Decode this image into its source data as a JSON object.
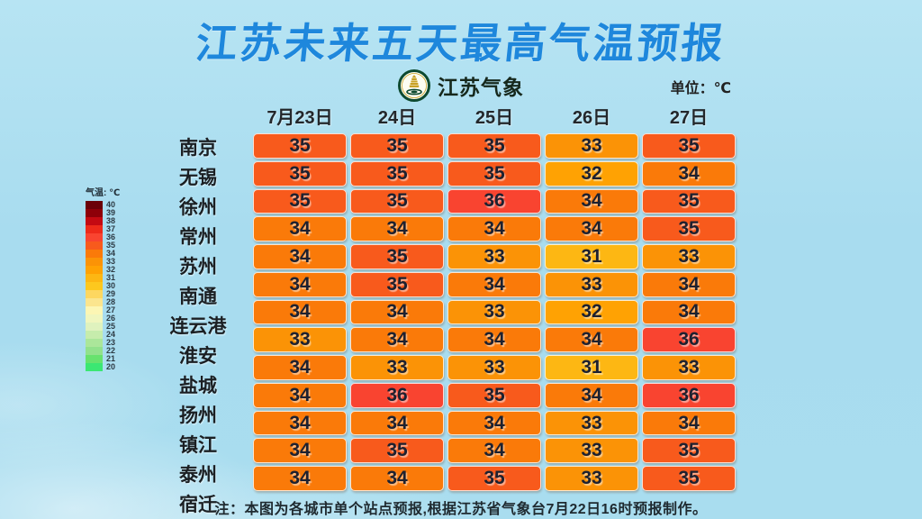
{
  "title": "江苏未来五天最高气温预报",
  "brand": {
    "label": "江苏气象"
  },
  "unit_label": "单位：℃",
  "note": "注：本图为各城市单个站点预报,根据江苏省气象台7月22日16时预报制作。",
  "legend": {
    "title": "气温: ℃",
    "ticks": [
      {
        "value": "40",
        "color": "#6b0008"
      },
      {
        "value": "39",
        "color": "#8e0009"
      },
      {
        "value": "38",
        "color": "#c40a12"
      },
      {
        "value": "37",
        "color": "#ee2a1a"
      },
      {
        "value": "36",
        "color": "#f94430"
      },
      {
        "value": "35",
        "color": "#f85a1c"
      },
      {
        "value": "34",
        "color": "#fa7a09"
      },
      {
        "value": "33",
        "color": "#fb9306"
      },
      {
        "value": "32",
        "color": "#ffa203"
      },
      {
        "value": "31",
        "color": "#fdb713"
      },
      {
        "value": "30",
        "color": "#fdc81e"
      },
      {
        "value": "29",
        "color": "#fdd760"
      },
      {
        "value": "28",
        "color": "#fbe58e"
      },
      {
        "value": "27",
        "color": "#fcf6b4"
      },
      {
        "value": "26",
        "color": "#f0f6be"
      },
      {
        "value": "25",
        "color": "#dff2be"
      },
      {
        "value": "24",
        "color": "#c6ecac"
      },
      {
        "value": "23",
        "color": "#abe69a"
      },
      {
        "value": "22",
        "color": "#92e18c"
      },
      {
        "value": "21",
        "color": "#67e26e"
      },
      {
        "value": "20",
        "color": "#3be773"
      }
    ]
  },
  "colors": {
    "title_blue": "#1e87dc",
    "background": "#a9ddef",
    "temp_colors": {
      "31": "#fdb713",
      "32": "#ffa203",
      "33": "#fb9306",
      "34": "#fa7a09",
      "35": "#f85a1c",
      "36": "#f94430"
    }
  },
  "chart_data": {
    "type": "heatmap",
    "title": "江苏未来五天最高气温预报",
    "unit": "℃",
    "columns": [
      "7月23日",
      "24日",
      "25日",
      "26日",
      "27日"
    ],
    "rows": [
      {
        "city": "南京",
        "temps": [
          35,
          35,
          35,
          33,
          35
        ]
      },
      {
        "city": "无锡",
        "temps": [
          35,
          35,
          35,
          32,
          34
        ]
      },
      {
        "city": "徐州",
        "temps": [
          35,
          35,
          36,
          34,
          35
        ]
      },
      {
        "city": "常州",
        "temps": [
          34,
          34,
          34,
          34,
          35
        ]
      },
      {
        "city": "苏州",
        "temps": [
          34,
          35,
          33,
          31,
          33
        ]
      },
      {
        "city": "南通",
        "temps": [
          34,
          35,
          34,
          33,
          34
        ]
      },
      {
        "city": "连云港",
        "temps": [
          34,
          34,
          33,
          32,
          34
        ]
      },
      {
        "city": "淮安",
        "temps": [
          33,
          34,
          34,
          34,
          36
        ]
      },
      {
        "city": "盐城",
        "temps": [
          34,
          33,
          33,
          31,
          33
        ]
      },
      {
        "city": "扬州",
        "temps": [
          34,
          36,
          35,
          34,
          36
        ]
      },
      {
        "city": "镇江",
        "temps": [
          34,
          34,
          34,
          33,
          34
        ]
      },
      {
        "city": "泰州",
        "temps": [
          34,
          35,
          34,
          33,
          35
        ]
      },
      {
        "city": "宿迁",
        "temps": [
          34,
          34,
          35,
          33,
          35
        ]
      }
    ],
    "legend_range": [
      20,
      40
    ],
    "legend_position": "left"
  }
}
